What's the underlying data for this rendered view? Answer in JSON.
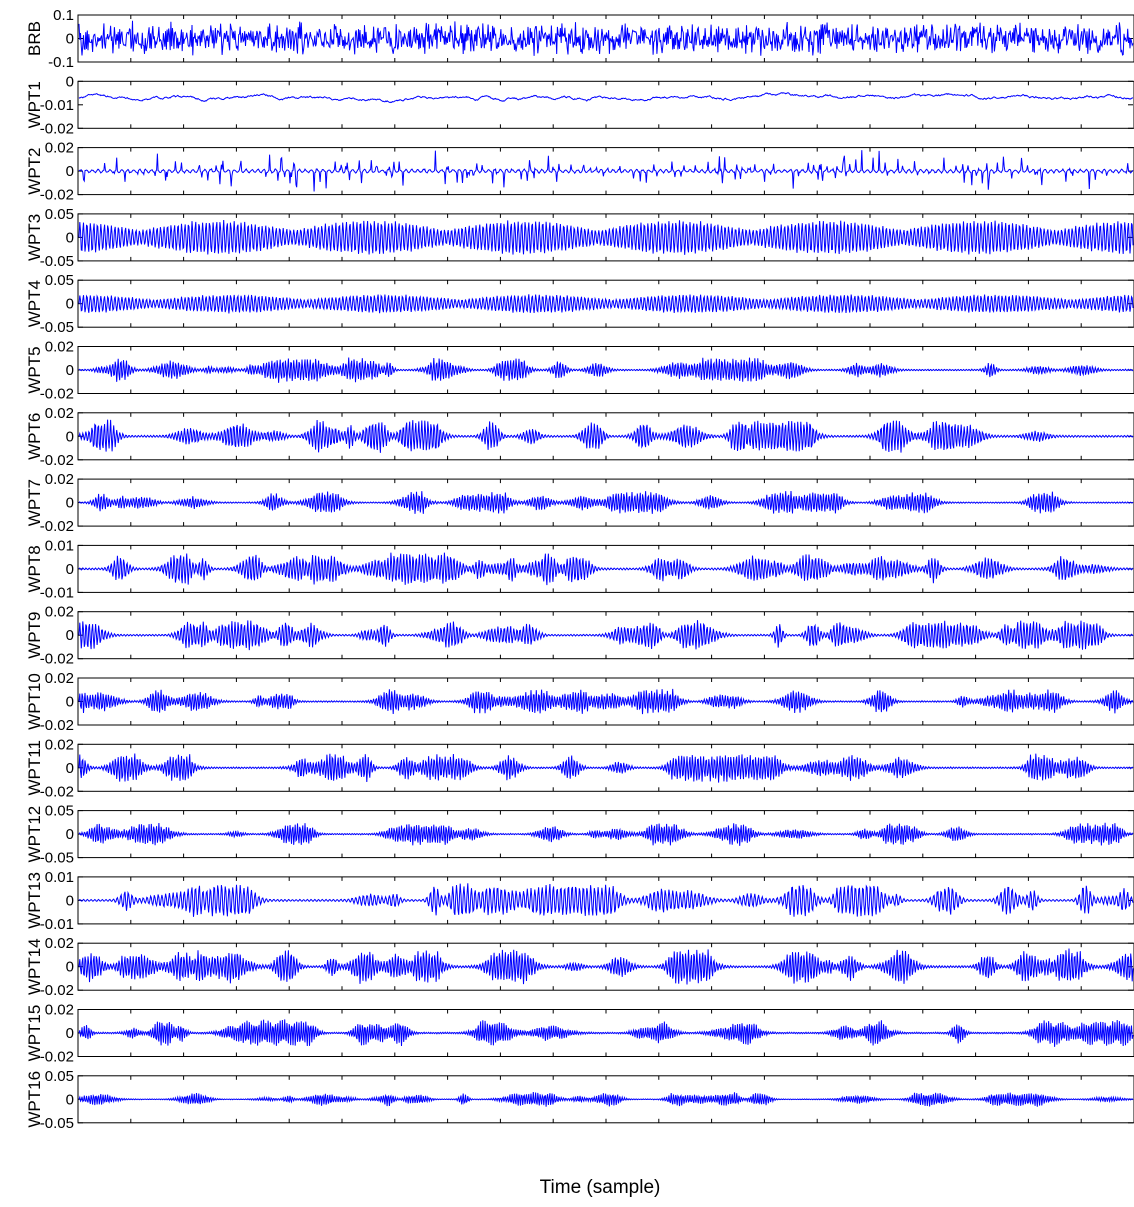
{
  "chart_data": {
    "type": "line",
    "xlabel": "Time (sample)",
    "line_color": "#0000ff",
    "axis_color": "#000000",
    "panels": [
      {
        "ylabel": "BRB",
        "yticks": [
          "0.1",
          "0",
          "-0.1"
        ],
        "ylim": [
          -0.1,
          0.1
        ],
        "pattern": "noise",
        "amp": 0.85,
        "seed": 11
      },
      {
        "ylabel": "WPT1",
        "yticks": [
          "0",
          "-0.01",
          "-0.02"
        ],
        "ylim": [
          -0.02,
          0
        ],
        "pattern": "lowfreq",
        "amp": 0.35,
        "seed": 12
      },
      {
        "ylabel": "WPT2",
        "yticks": [
          "0.02",
          "0",
          "-0.02"
        ],
        "ylim": [
          -0.02,
          0.02
        ],
        "pattern": "sparse",
        "amp": 0.55,
        "seed": 13
      },
      {
        "ylabel": "WPT3",
        "yticks": [
          "0.05",
          "0",
          "-0.05"
        ],
        "ylim": [
          -0.05,
          0.05
        ],
        "pattern": "beat",
        "amp": 0.82,
        "seed": 14
      },
      {
        "ylabel": "WPT4",
        "yticks": [
          "0.05",
          "0",
          "-0.05"
        ],
        "ylim": [
          -0.05,
          0.05
        ],
        "pattern": "beatsmall",
        "amp": 0.45,
        "seed": 15
      },
      {
        "ylabel": "WPT5",
        "yticks": [
          "0.02",
          "0",
          "-0.02"
        ],
        "ylim": [
          -0.02,
          0.02
        ],
        "pattern": "burst",
        "amp": 0.6,
        "seed": 16
      },
      {
        "ylabel": "WPT6",
        "yticks": [
          "0.02",
          "0",
          "-0.02"
        ],
        "ylim": [
          -0.02,
          0.02
        ],
        "pattern": "burst",
        "amp": 0.8,
        "seed": 17
      },
      {
        "ylabel": "WPT7",
        "yticks": [
          "0.02",
          "0",
          "-0.02"
        ],
        "ylim": [
          -0.02,
          0.02
        ],
        "pattern": "burst",
        "amp": 0.55,
        "seed": 18
      },
      {
        "ylabel": "WPT8",
        "yticks": [
          "0.01",
          "0",
          "-0.01"
        ],
        "ylim": [
          -0.01,
          0.01
        ],
        "pattern": "burst",
        "amp": 0.8,
        "seed": 19
      },
      {
        "ylabel": "WPT9",
        "yticks": [
          "0.02",
          "0",
          "-0.02"
        ],
        "ylim": [
          -0.02,
          0.02
        ],
        "pattern": "burst",
        "amp": 0.7,
        "seed": 20
      },
      {
        "ylabel": "WPT10",
        "yticks": [
          "0.02",
          "0",
          "-0.02"
        ],
        "ylim": [
          -0.02,
          0.02
        ],
        "pattern": "burst",
        "amp": 0.6,
        "seed": 21
      },
      {
        "ylabel": "WPT11",
        "yticks": [
          "0.02",
          "0",
          "-0.02"
        ],
        "ylim": [
          -0.02,
          0.02
        ],
        "pattern": "burst",
        "amp": 0.7,
        "seed": 22
      },
      {
        "ylabel": "WPT12",
        "yticks": [
          "0.05",
          "0",
          "-0.05"
        ],
        "ylim": [
          -0.05,
          0.05
        ],
        "pattern": "burst",
        "amp": 0.55,
        "seed": 23
      },
      {
        "ylabel": "WPT13",
        "yticks": [
          "0.01",
          "0",
          "-0.01"
        ],
        "ylim": [
          -0.01,
          0.01
        ],
        "pattern": "burst",
        "amp": 0.8,
        "seed": 24
      },
      {
        "ylabel": "WPT14",
        "yticks": [
          "0.02",
          "0",
          "-0.02"
        ],
        "ylim": [
          -0.02,
          0.02
        ],
        "pattern": "burst",
        "amp": 0.85,
        "seed": 25
      },
      {
        "ylabel": "WPT15",
        "yticks": [
          "0.02",
          "0",
          "-0.02"
        ],
        "ylim": [
          -0.02,
          0.02
        ],
        "pattern": "burst",
        "amp": 0.65,
        "seed": 26
      },
      {
        "ylabel": "WPT16",
        "yticks": [
          "0.05",
          "0",
          "-0.05"
        ],
        "ylim": [
          -0.05,
          0.05
        ],
        "pattern": "burst",
        "amp": 0.35,
        "seed": 27
      }
    ]
  }
}
